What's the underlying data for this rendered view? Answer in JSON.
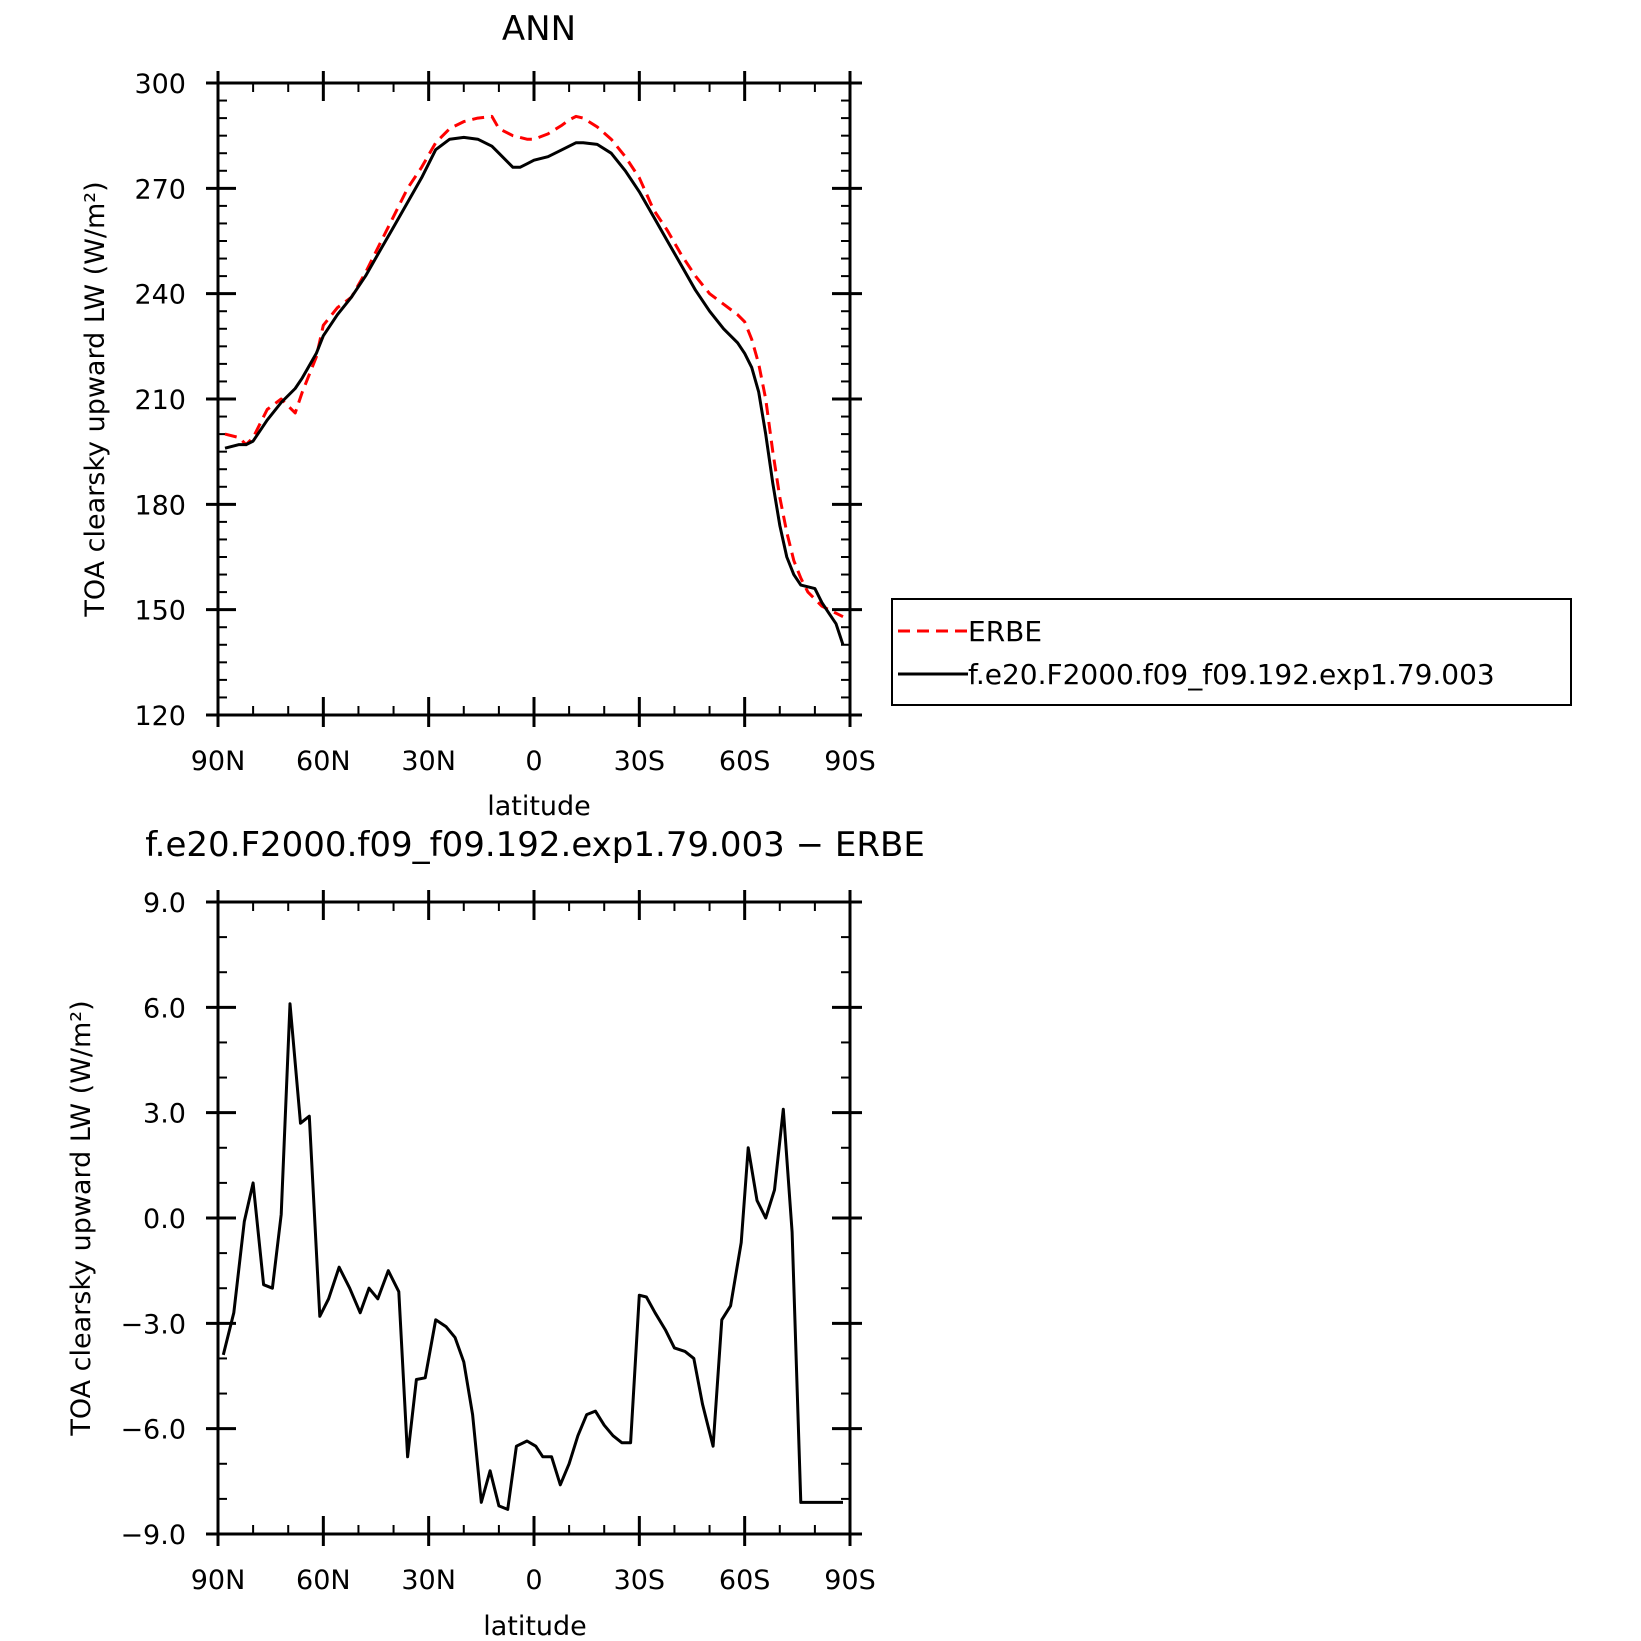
{
  "chart_data": [
    {
      "type": "line",
      "title": "ANN",
      "xlabel": "latitude",
      "ylabel": "TOA clearsky upward LW (W/m²)",
      "xlim": [
        90,
        -90
      ],
      "ylim": [
        120,
        300
      ],
      "x_ticks": [
        {
          "value": 90,
          "label": "90N"
        },
        {
          "value": 60,
          "label": "60N"
        },
        {
          "value": 30,
          "label": "30N"
        },
        {
          "value": 0,
          "label": "0"
        },
        {
          "value": -30,
          "label": "30S"
        },
        {
          "value": -60,
          "label": "60S"
        },
        {
          "value": -90,
          "label": "90S"
        }
      ],
      "y_ticks": [
        {
          "value": 300,
          "label": "300"
        },
        {
          "value": 270,
          "label": "270"
        },
        {
          "value": 240,
          "label": "240"
        },
        {
          "value": 210,
          "label": "210"
        },
        {
          "value": 180,
          "label": "180"
        },
        {
          "value": 150,
          "label": "150"
        },
        {
          "value": 120,
          "label": "120"
        }
      ],
      "grid": false,
      "legend": "right",
      "series": [
        {
          "name": "ERBE",
          "color": "#ff0000",
          "dash": "dashed",
          "x": [
            88,
            84,
            82,
            80,
            76,
            72,
            68,
            66,
            62,
            60,
            56,
            52,
            48,
            44,
            40,
            36,
            32,
            28,
            24,
            20,
            16,
            12,
            10,
            6,
            2,
            0,
            -4,
            -8,
            -10,
            -12,
            -14,
            -18,
            -22,
            -26,
            -30,
            -34,
            -38,
            -42,
            -46,
            -50,
            -54,
            -58,
            -60,
            -62,
            -64,
            -66,
            -68,
            -70,
            -72,
            -74,
            -76,
            -78,
            -80,
            -82,
            -84,
            -86,
            -88
          ],
          "y": [
            200,
            199,
            197,
            199,
            207,
            210,
            206,
            212,
            222,
            231,
            236,
            239,
            246,
            254,
            262,
            270,
            276,
            283,
            287,
            289,
            290,
            290.5,
            287,
            285,
            284,
            284,
            285.5,
            288,
            289.5,
            290.5,
            290,
            287.5,
            284,
            279,
            273,
            264,
            258,
            251,
            245,
            240,
            237,
            234,
            232,
            227,
            220,
            210,
            195,
            182,
            172,
            164,
            159,
            155,
            153,
            151,
            150,
            149,
            148
          ]
        },
        {
          "name": "f.e20.F2000.f09_f09.192.exp1.79.003",
          "color": "#000000",
          "dash": "solid",
          "x": [
            88,
            84,
            82,
            80,
            76,
            72,
            68,
            66,
            62,
            60,
            56,
            52,
            48,
            44,
            40,
            36,
            32,
            28,
            24,
            20,
            16,
            12,
            10,
            6,
            4,
            2,
            0,
            -4,
            -8,
            -10,
            -12,
            -14,
            -18,
            -22,
            -26,
            -30,
            -34,
            -38,
            -42,
            -46,
            -50,
            -54,
            -58,
            -60,
            -62,
            -64,
            -66,
            -68,
            -70,
            -72,
            -74,
            -76,
            -78,
            -80,
            -82,
            -84,
            -86,
            -88
          ],
          "y": [
            196,
            197,
            197,
            198,
            204,
            209,
            213,
            216,
            223,
            228,
            234,
            239,
            245,
            252,
            259,
            266,
            273,
            281,
            284,
            284.5,
            284,
            282,
            280,
            276,
            276,
            277,
            278,
            279,
            281,
            282,
            283,
            283,
            282.5,
            280,
            275,
            269,
            262,
            255,
            248,
            241,
            235,
            230,
            226,
            223,
            219,
            212,
            200,
            186,
            174,
            165,
            160,
            157,
            156.5,
            156,
            152,
            149,
            146,
            140
          ]
        }
      ]
    },
    {
      "type": "line",
      "title": "f.e20.F2000.f09_f09.192.exp1.79.003 − ERBE",
      "xlabel": "latitude",
      "ylabel": "TOA clearsky upward LW (W/m²)",
      "xlim": [
        90,
        -90
      ],
      "ylim": [
        -9,
        9
      ],
      "x_ticks": [
        {
          "value": 90,
          "label": "90N"
        },
        {
          "value": 60,
          "label": "60N"
        },
        {
          "value": 30,
          "label": "30N"
        },
        {
          "value": 0,
          "label": "0"
        },
        {
          "value": -30,
          "label": "30S"
        },
        {
          "value": -60,
          "label": "60S"
        },
        {
          "value": -90,
          "label": "90S"
        }
      ],
      "y_ticks": [
        {
          "value": 9,
          "label": "9.0"
        },
        {
          "value": 6,
          "label": "6.0"
        },
        {
          "value": 3,
          "label": "3.0"
        },
        {
          "value": 0,
          "label": "0.0"
        },
        {
          "value": -3,
          "label": "−3.0"
        },
        {
          "value": -6,
          "label": "−6.0"
        },
        {
          "value": -9,
          "label": "−9.0"
        }
      ],
      "grid": false,
      "series": [
        {
          "color": "#000000",
          "x": [
            88.5,
            85.5,
            82.5,
            80,
            77,
            74.5,
            72,
            69.5,
            66.5,
            64,
            61,
            58.5,
            55.5,
            52.5,
            49.5,
            47,
            44.5,
            41.5,
            38.5,
            36,
            33.5,
            31,
            28,
            25,
            22.5,
            20,
            17.5,
            15,
            12.5,
            10,
            7.5,
            5,
            2,
            -0.5,
            -2.5,
            -5,
            -7.5,
            -10,
            -12.5,
            -15,
            -17.5,
            -20,
            -22.5,
            -25,
            -27.5,
            -30,
            -32,
            -34.5,
            -37.5,
            -40,
            -43,
            -45.5,
            -48,
            -51,
            -53.5,
            -56,
            -59,
            -61,
            -63.5,
            -66,
            -68.5,
            -71,
            -73.5,
            -76,
            -78.5,
            -81,
            -83.5,
            -86,
            -88
          ],
          "y": [
            -3.9,
            -2.7,
            -0.1,
            1.0,
            -1.9,
            -2.0,
            0.1,
            6.1,
            2.7,
            2.9,
            -2.8,
            -2.3,
            -1.4,
            -2.0,
            -2.7,
            -2.0,
            -2.3,
            -1.5,
            -2.1,
            -6.8,
            -4.6,
            -4.55,
            -2.9,
            -3.1,
            -3.4,
            -4.1,
            -5.6,
            -8.1,
            -7.2,
            -8.2,
            -8.3,
            -6.5,
            -6.35,
            -6.5,
            -6.8,
            -6.8,
            -7.6,
            -7.0,
            -6.2,
            -5.6,
            -5.5,
            -5.9,
            -6.2,
            -6.4,
            -6.4,
            -2.2,
            -2.25,
            -2.7,
            -3.2,
            -3.7,
            -3.8,
            -4.0,
            -5.3,
            -6.5,
            -2.9,
            -2.5,
            -0.7,
            2.0,
            0.5,
            0.0,
            0.8,
            3.1,
            -0.4,
            -8.1,
            -8.1,
            -8.1,
            -8.1,
            -8.1,
            -8.1
          ]
        }
      ]
    }
  ]
}
